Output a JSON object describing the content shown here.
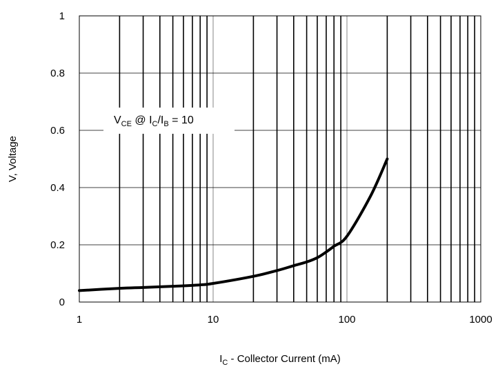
{
  "chart_data": {
    "type": "line",
    "title": "",
    "xlabel": {
      "main": "I",
      "sub": "C",
      "rest": " - Collector Current (mA)"
    },
    "ylabel": "V, Voltage",
    "xscale": "log",
    "xlim": [
      1,
      1000
    ],
    "ylim": [
      0,
      1
    ],
    "x_ticks": [
      1,
      10,
      100,
      1000
    ],
    "x_tick_labels": [
      "1",
      "10",
      "100",
      "1000"
    ],
    "y_ticks": [
      0,
      0.2,
      0.4,
      0.6,
      0.8,
      1
    ],
    "y_tick_labels": [
      "0",
      "0.2",
      "0.4",
      "0.6",
      "0.8",
      "1"
    ],
    "grid": true,
    "annotation": {
      "v": "V",
      "v_sub": "CE",
      "at": " @ I",
      "ic_sub": "C",
      "slash": "/I",
      "ib_sub": "B",
      "eq": " = 10"
    },
    "series": [
      {
        "x": [
          1,
          2,
          3,
          5,
          8,
          10,
          20,
          30,
          40,
          50,
          60,
          70,
          80,
          100,
          150,
          200
        ],
        "y": [
          0.04,
          0.048,
          0.051,
          0.055,
          0.06,
          0.065,
          0.09,
          0.11,
          0.127,
          0.14,
          0.155,
          0.175,
          0.195,
          0.23,
          0.37,
          0.5
        ]
      }
    ],
    "colors": {
      "line": "#000000",
      "grid": "#000000",
      "background": "#ffffff"
    }
  }
}
